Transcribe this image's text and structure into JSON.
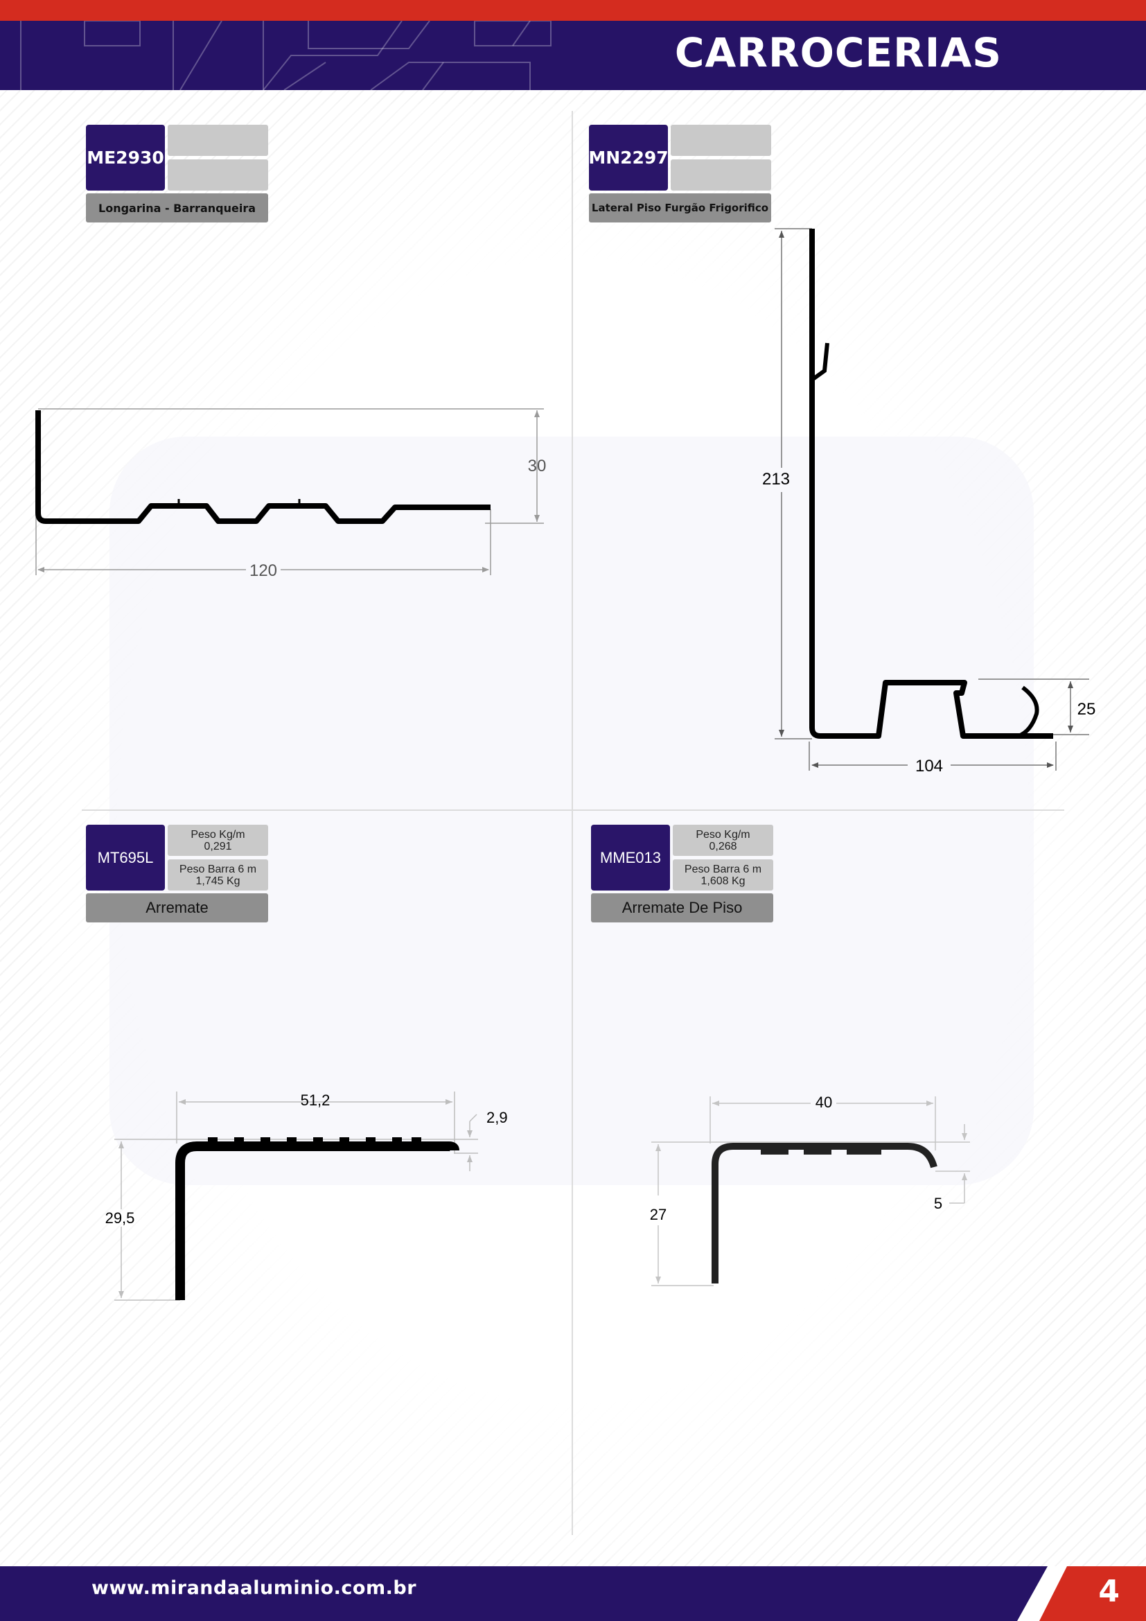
{
  "header": {
    "title": "CARROCERIAS"
  },
  "products": [
    {
      "code": "ME2930",
      "info_top": [
        "",
        ""
      ],
      "info_bottom": [
        "",
        ""
      ],
      "name": "Longarina - Barranqueira",
      "dimensions": {
        "height": "30",
        "width": "120"
      }
    },
    {
      "code": "MN2297",
      "info_top": [
        "",
        ""
      ],
      "info_bottom": [
        "",
        ""
      ],
      "name": "Lateral Piso Furgão Frigorifico",
      "dimensions": {
        "height": "213",
        "width": "104",
        "lip": "25"
      }
    },
    {
      "code": "MT695L",
      "info_top": [
        "Peso Kg/m",
        "0,291"
      ],
      "info_bottom": [
        "Peso Barra 6 m",
        "1,745 Kg"
      ],
      "name": "Arremate",
      "dimensions": {
        "width": "51,2",
        "thickness": "2,9",
        "height": "29,5"
      }
    },
    {
      "code": "MME013",
      "info_top": [
        "Peso Kg/m",
        "0,268"
      ],
      "info_bottom": [
        "Peso Barra 6 m",
        "1,608 Kg"
      ],
      "name": "Arremate De Piso",
      "dimensions": {
        "width": "40",
        "height": "27",
        "lip": "5"
      }
    }
  ],
  "footer": {
    "url": "www.mirandaaluminio.com.br",
    "page_number": "4"
  }
}
